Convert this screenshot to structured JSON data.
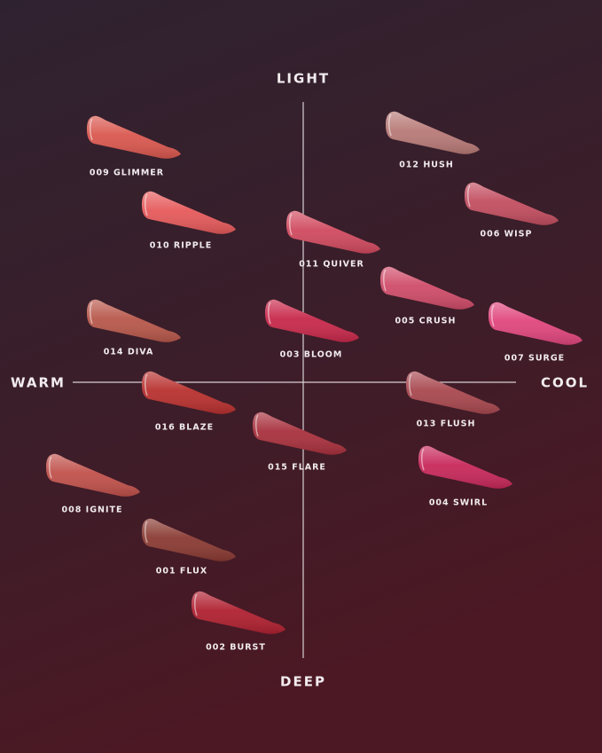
{
  "axes": {
    "top": "LIGHT",
    "bottom": "DEEP",
    "left": "WARM",
    "right": "COOL"
  },
  "swatches": [
    {
      "label": "009 GLIMMER",
      "color": "#d9584f"
    },
    {
      "label": "010 RIPPLE",
      "color": "#e65a5b"
    },
    {
      "label": "011 QUIVER",
      "color": "#d04a5f"
    },
    {
      "label": "012 HUSH",
      "color": "#b87a77"
    },
    {
      "label": "006 WISP",
      "color": "#c24e60"
    },
    {
      "label": "005 CRUSH",
      "color": "#cf4c69"
    },
    {
      "label": "007 SURGE",
      "color": "#e0467d"
    },
    {
      "label": "014 DIVA",
      "color": "#b8584b"
    },
    {
      "label": "003 BLOOM",
      "color": "#c8294b"
    },
    {
      "label": "016 BLAZE",
      "color": "#b8312f"
    },
    {
      "label": "013 FLUSH",
      "color": "#a8484f"
    },
    {
      "label": "015 FLARE",
      "color": "#a8313d"
    },
    {
      "label": "004 SWIRL",
      "color": "#c8295b"
    },
    {
      "label": "008 IGNITE",
      "color": "#c0514b"
    },
    {
      "label": "001 FLUX",
      "color": "#8a3b33"
    },
    {
      "label": "002 BURST",
      "color": "#b02131"
    }
  ]
}
